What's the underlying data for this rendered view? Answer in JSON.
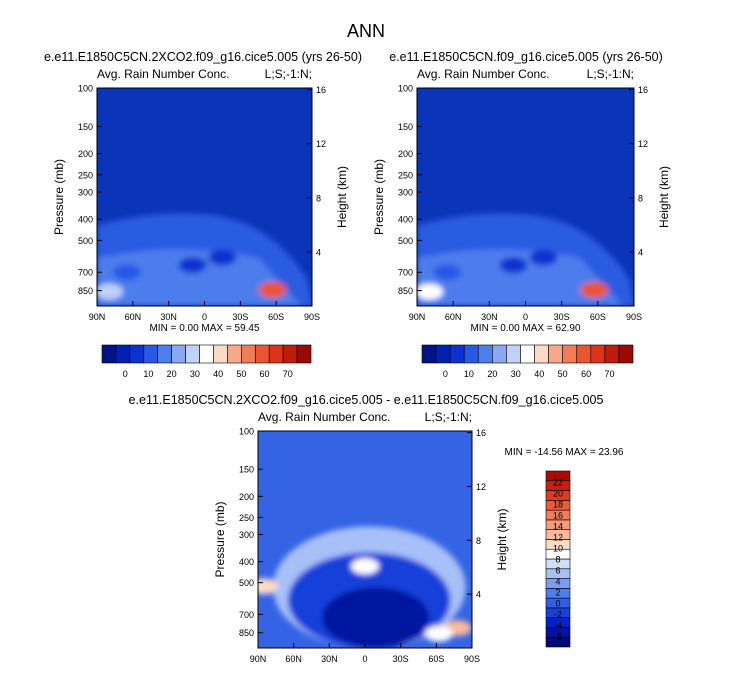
{
  "figure": {
    "title": "ANN"
  },
  "colors": {
    "bg": "#0B35B8",
    "scale12": [
      "#001486",
      "#0420B2",
      "#0A33D0",
      "#2858E4",
      "#4C7EEC",
      "#8AA8F2",
      "#C0D2F8",
      "#FFFFFF",
      "#FBD9C5",
      "#F6A98A",
      "#F07D58",
      "#EB5532",
      "#DC3418",
      "#BE1D0C",
      "#960B02"
    ],
    "scale_diff": [
      "#000A78",
      "#00149E",
      "#0522C4",
      "#1741DA",
      "#2F60E6",
      "#4D7DEF",
      "#7B9EF5",
      "#A8C0F8",
      "#D0DEFB",
      "#FFFFFF",
      "#FDDCC6",
      "#F9B99C",
      "#F59A7B",
      "#F07C5B",
      "#EA5B3D",
      "#E03A22",
      "#C8210E",
      "#A50E03"
    ]
  },
  "chart_data": [
    {
      "type": "heatmap",
      "title": "e.e11.E1850C5CN.2XCO2.f09_g16.cice5.005 (yrs 26-50)",
      "subtitle_left": "Avg. Rain Number Conc.",
      "subtitle_right": "L;S;-1:N;",
      "xlabel": "",
      "ylabel": "Pressure (mb)",
      "ylabel_right": "Height (km)",
      "x_ticks": [
        "90N",
        "60N",
        "30N",
        "0",
        "30S",
        "60S",
        "90S"
      ],
      "x_values": [
        90,
        60,
        30,
        0,
        -30,
        -60,
        -90
      ],
      "y_ticks": [
        100,
        150,
        200,
        250,
        300,
        400,
        500,
        700,
        850
      ],
      "y_right_ticks": [
        16,
        12,
        8,
        4
      ],
      "ylim": [
        100,
        1000
      ],
      "stats": "MIN =  0.00  MAX = 59.45",
      "colorbar_ticks": [
        0,
        10,
        20,
        30,
        40,
        50,
        60,
        70
      ],
      "colorbar_range": [
        -10,
        80
      ],
      "features": [
        {
          "lat": -57,
          "p": 845,
          "value": 58
        },
        {
          "lat": 80,
          "p": 860,
          "value": 30
        },
        {
          "lat": 65,
          "p": 700,
          "value": 8
        },
        {
          "lat": 10,
          "p": 650,
          "value": 5
        },
        {
          "lat": -15,
          "p": 600,
          "value": 6
        }
      ]
    },
    {
      "type": "heatmap",
      "title": "e.e11.E1850C5CN.f09_g16.cice5.005 (yrs 26-50)",
      "subtitle_left": "Avg. Rain Number Conc.",
      "subtitle_right": "L;S;-1:N;",
      "xlabel": "",
      "ylabel": "Pressure (mb)",
      "ylabel_right": "Height (km)",
      "x_ticks": [
        "90N",
        "60N",
        "30N",
        "0",
        "30S",
        "60S",
        "90S"
      ],
      "x_values": [
        90,
        60,
        30,
        0,
        -30,
        -60,
        -90
      ],
      "y_ticks": [
        100,
        150,
        200,
        250,
        300,
        400,
        500,
        700,
        850
      ],
      "y_right_ticks": [
        16,
        12,
        8,
        4
      ],
      "ylim": [
        100,
        1000
      ],
      "stats": "MIN =  0.00  MAX = 62.90",
      "colorbar_ticks": [
        0,
        10,
        20,
        30,
        40,
        50,
        60,
        70
      ],
      "colorbar_range": [
        -10,
        80
      ],
      "features": [
        {
          "lat": -57,
          "p": 845,
          "value": 61
        },
        {
          "lat": 80,
          "p": 860,
          "value": 32
        },
        {
          "lat": 65,
          "p": 700,
          "value": 10
        },
        {
          "lat": 10,
          "p": 650,
          "value": 5
        },
        {
          "lat": -15,
          "p": 600,
          "value": 6
        }
      ]
    },
    {
      "type": "heatmap",
      "title": "e.e11.E1850C5CN.2XCO2.f09_g16.cice5.005 - e.e11.E1850C5CN.f09_g16.cice5.005",
      "subtitle_left": "Avg. Rain Number Conc.",
      "subtitle_right": "L;S;-1:N;",
      "xlabel": "",
      "ylabel": "Pressure (mb)",
      "ylabel_right": "Height (km)",
      "x_ticks": [
        "90N",
        "60N",
        "30N",
        "0",
        "30S",
        "60S",
        "90S"
      ],
      "x_values": [
        90,
        60,
        30,
        0,
        -30,
        -60,
        -90
      ],
      "y_ticks": [
        100,
        150,
        200,
        250,
        300,
        400,
        500,
        700,
        850
      ],
      "y_right_ticks": [
        16,
        12,
        8,
        4
      ],
      "ylim": [
        100,
        1000
      ],
      "stats": "MIN = -14.56  MAX = 23.96",
      "colorbar_ticks": [
        22,
        20,
        18,
        16,
        14,
        12,
        10,
        8,
        6,
        4,
        2,
        0,
        -2,
        -4,
        -6
      ],
      "colorbar_range": [
        -8,
        24
      ],
      "features": [
        {
          "lat": 0,
          "p": 420,
          "value": 8
        },
        {
          "lat": 85,
          "p": 520,
          "value": 10
        },
        {
          "lat": 0,
          "p": 650,
          "value": -6
        },
        {
          "lat": -78,
          "p": 810,
          "value": 12
        },
        {
          "lat": -62,
          "p": 860,
          "value": 8
        }
      ]
    }
  ]
}
